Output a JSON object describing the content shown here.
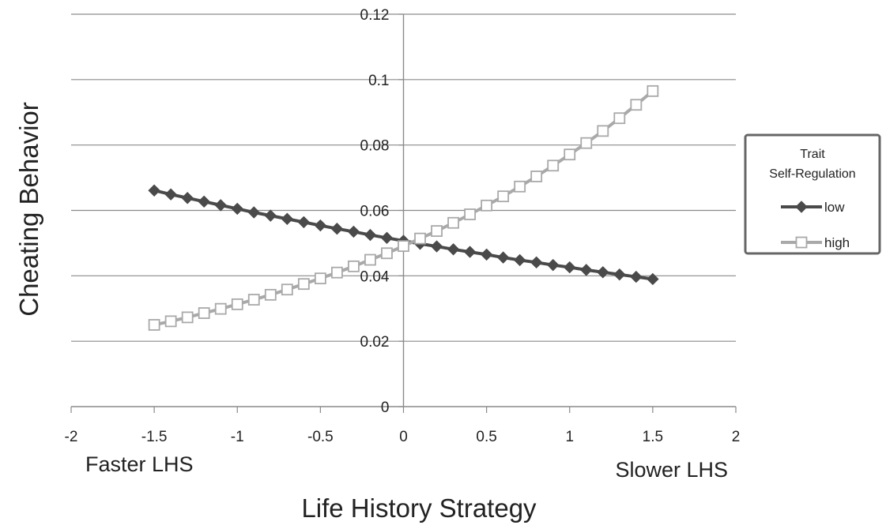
{
  "chart_data": {
    "type": "line",
    "xlabel": "Life History Strategy",
    "ylabel": "Cheating Behavior",
    "xlim": [
      -2,
      2
    ],
    "ylim": [
      0,
      0.12
    ],
    "x_ticks": [
      "-2",
      "-1.5",
      "-1",
      "-0.5",
      "0",
      "0.5",
      "1",
      "1.5",
      "2"
    ],
    "y_ticks": [
      "0",
      "0.02",
      "0.04",
      "0.06",
      "0.08",
      "0.1",
      "0.12"
    ],
    "x_tick_values": [
      -2,
      -1.5,
      -1,
      -0.5,
      0,
      0.5,
      1,
      1.5,
      2
    ],
    "y_tick_values": [
      0,
      0.02,
      0.04,
      0.06,
      0.08,
      0.1,
      0.12
    ],
    "grid": true,
    "legend_position": "right",
    "annotations": {
      "left": "Faster LHS",
      "right": "Slower LHS"
    },
    "legend_title": "Trait Self-Regulation",
    "series": [
      {
        "name": "low",
        "color": "#4a4a4a",
        "marker": "diamond",
        "x": [
          -1.5,
          -1.4,
          -1.3,
          -1.2,
          -1.1,
          -1.0,
          -0.9,
          -0.8,
          -0.7,
          -0.6,
          -0.5,
          -0.4,
          -0.3,
          -0.2,
          -0.1,
          0.0,
          0.1,
          0.2,
          0.3,
          0.4,
          0.5,
          0.6,
          0.7,
          0.8,
          0.9,
          1.0,
          1.1,
          1.2,
          1.3,
          1.4,
          1.5
        ],
        "values": [
          0.0661,
          0.0649,
          0.0638,
          0.0627,
          0.0616,
          0.0605,
          0.0594,
          0.0584,
          0.0574,
          0.0564,
          0.0554,
          0.0544,
          0.0535,
          0.0525,
          0.0516,
          0.0507,
          0.0498,
          0.049,
          0.0481,
          0.0473,
          0.0465,
          0.0456,
          0.0448,
          0.0441,
          0.0433,
          0.0426,
          0.0418,
          0.0411,
          0.0404,
          0.0397,
          0.039
        ]
      },
      {
        "name": "high",
        "color": "#a9a9a9",
        "marker": "square",
        "x": [
          -1.5,
          -1.4,
          -1.3,
          -1.2,
          -1.1,
          -1.0,
          -0.9,
          -0.8,
          -0.7,
          -0.6,
          -0.5,
          -0.4,
          -0.3,
          -0.2,
          -0.1,
          0.0,
          0.1,
          0.2,
          0.3,
          0.4,
          0.5,
          0.6,
          0.7,
          0.8,
          0.9,
          1.0,
          1.1,
          1.2,
          1.3,
          1.4,
          1.5
        ],
        "values": [
          0.025,
          0.0261,
          0.0273,
          0.0286,
          0.0299,
          0.0313,
          0.0327,
          0.0342,
          0.0358,
          0.0375,
          0.0392,
          0.041,
          0.0429,
          0.0449,
          0.0469,
          0.0491,
          0.0514,
          0.0537,
          0.0562,
          0.0588,
          0.0615,
          0.0643,
          0.0673,
          0.0704,
          0.0737,
          0.0771,
          0.0806,
          0.0843,
          0.0882,
          0.0923,
          0.0965
        ]
      }
    ]
  }
}
